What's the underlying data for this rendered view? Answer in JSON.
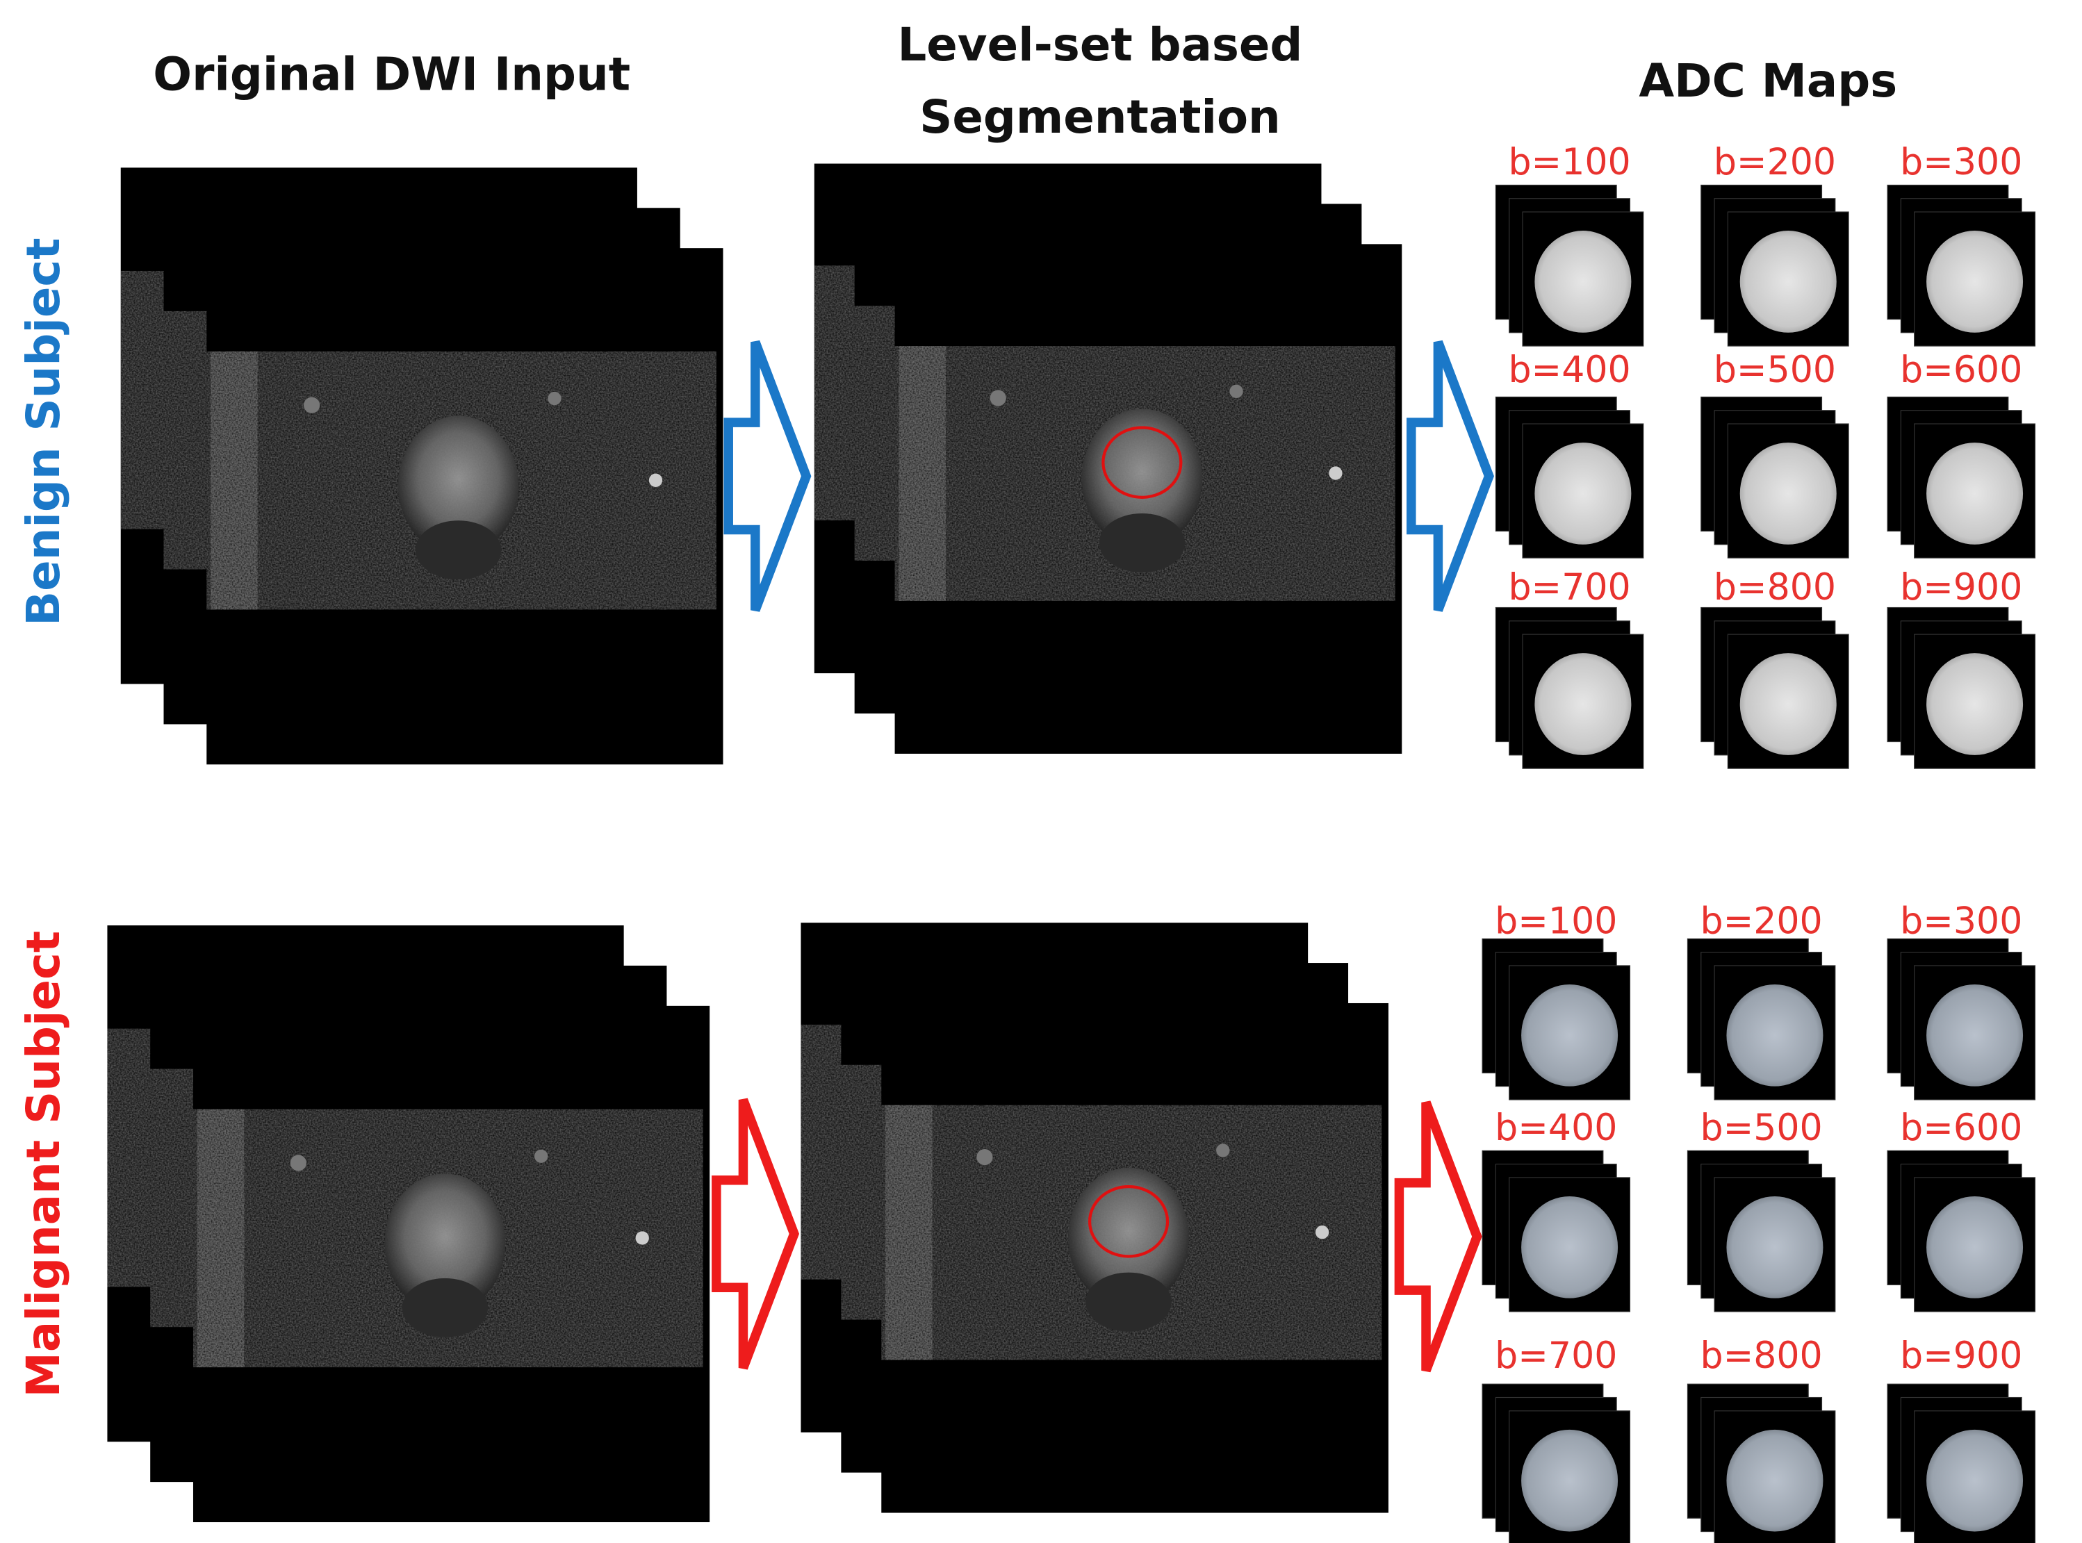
{
  "columns": [
    {
      "lines": [
        "Original DWI Input"
      ]
    },
    {
      "lines": [
        "Level-set based",
        "Segmentation"
      ]
    },
    {
      "lines": [
        "ADC Maps"
      ]
    }
  ],
  "rows": [
    {
      "label": "Benign Subject",
      "b_values": [
        "b=100",
        "b=200",
        "b=300",
        "b=400",
        "b=500",
        "b=600",
        "b=700",
        "b=800",
        "b=900"
      ]
    },
    {
      "label": "Malignant Subject",
      "b_values": [
        "b=100",
        "b=200",
        "b=300",
        "b=400",
        "b=500",
        "b=600",
        "b=700",
        "b=800",
        "b=900"
      ]
    }
  ]
}
